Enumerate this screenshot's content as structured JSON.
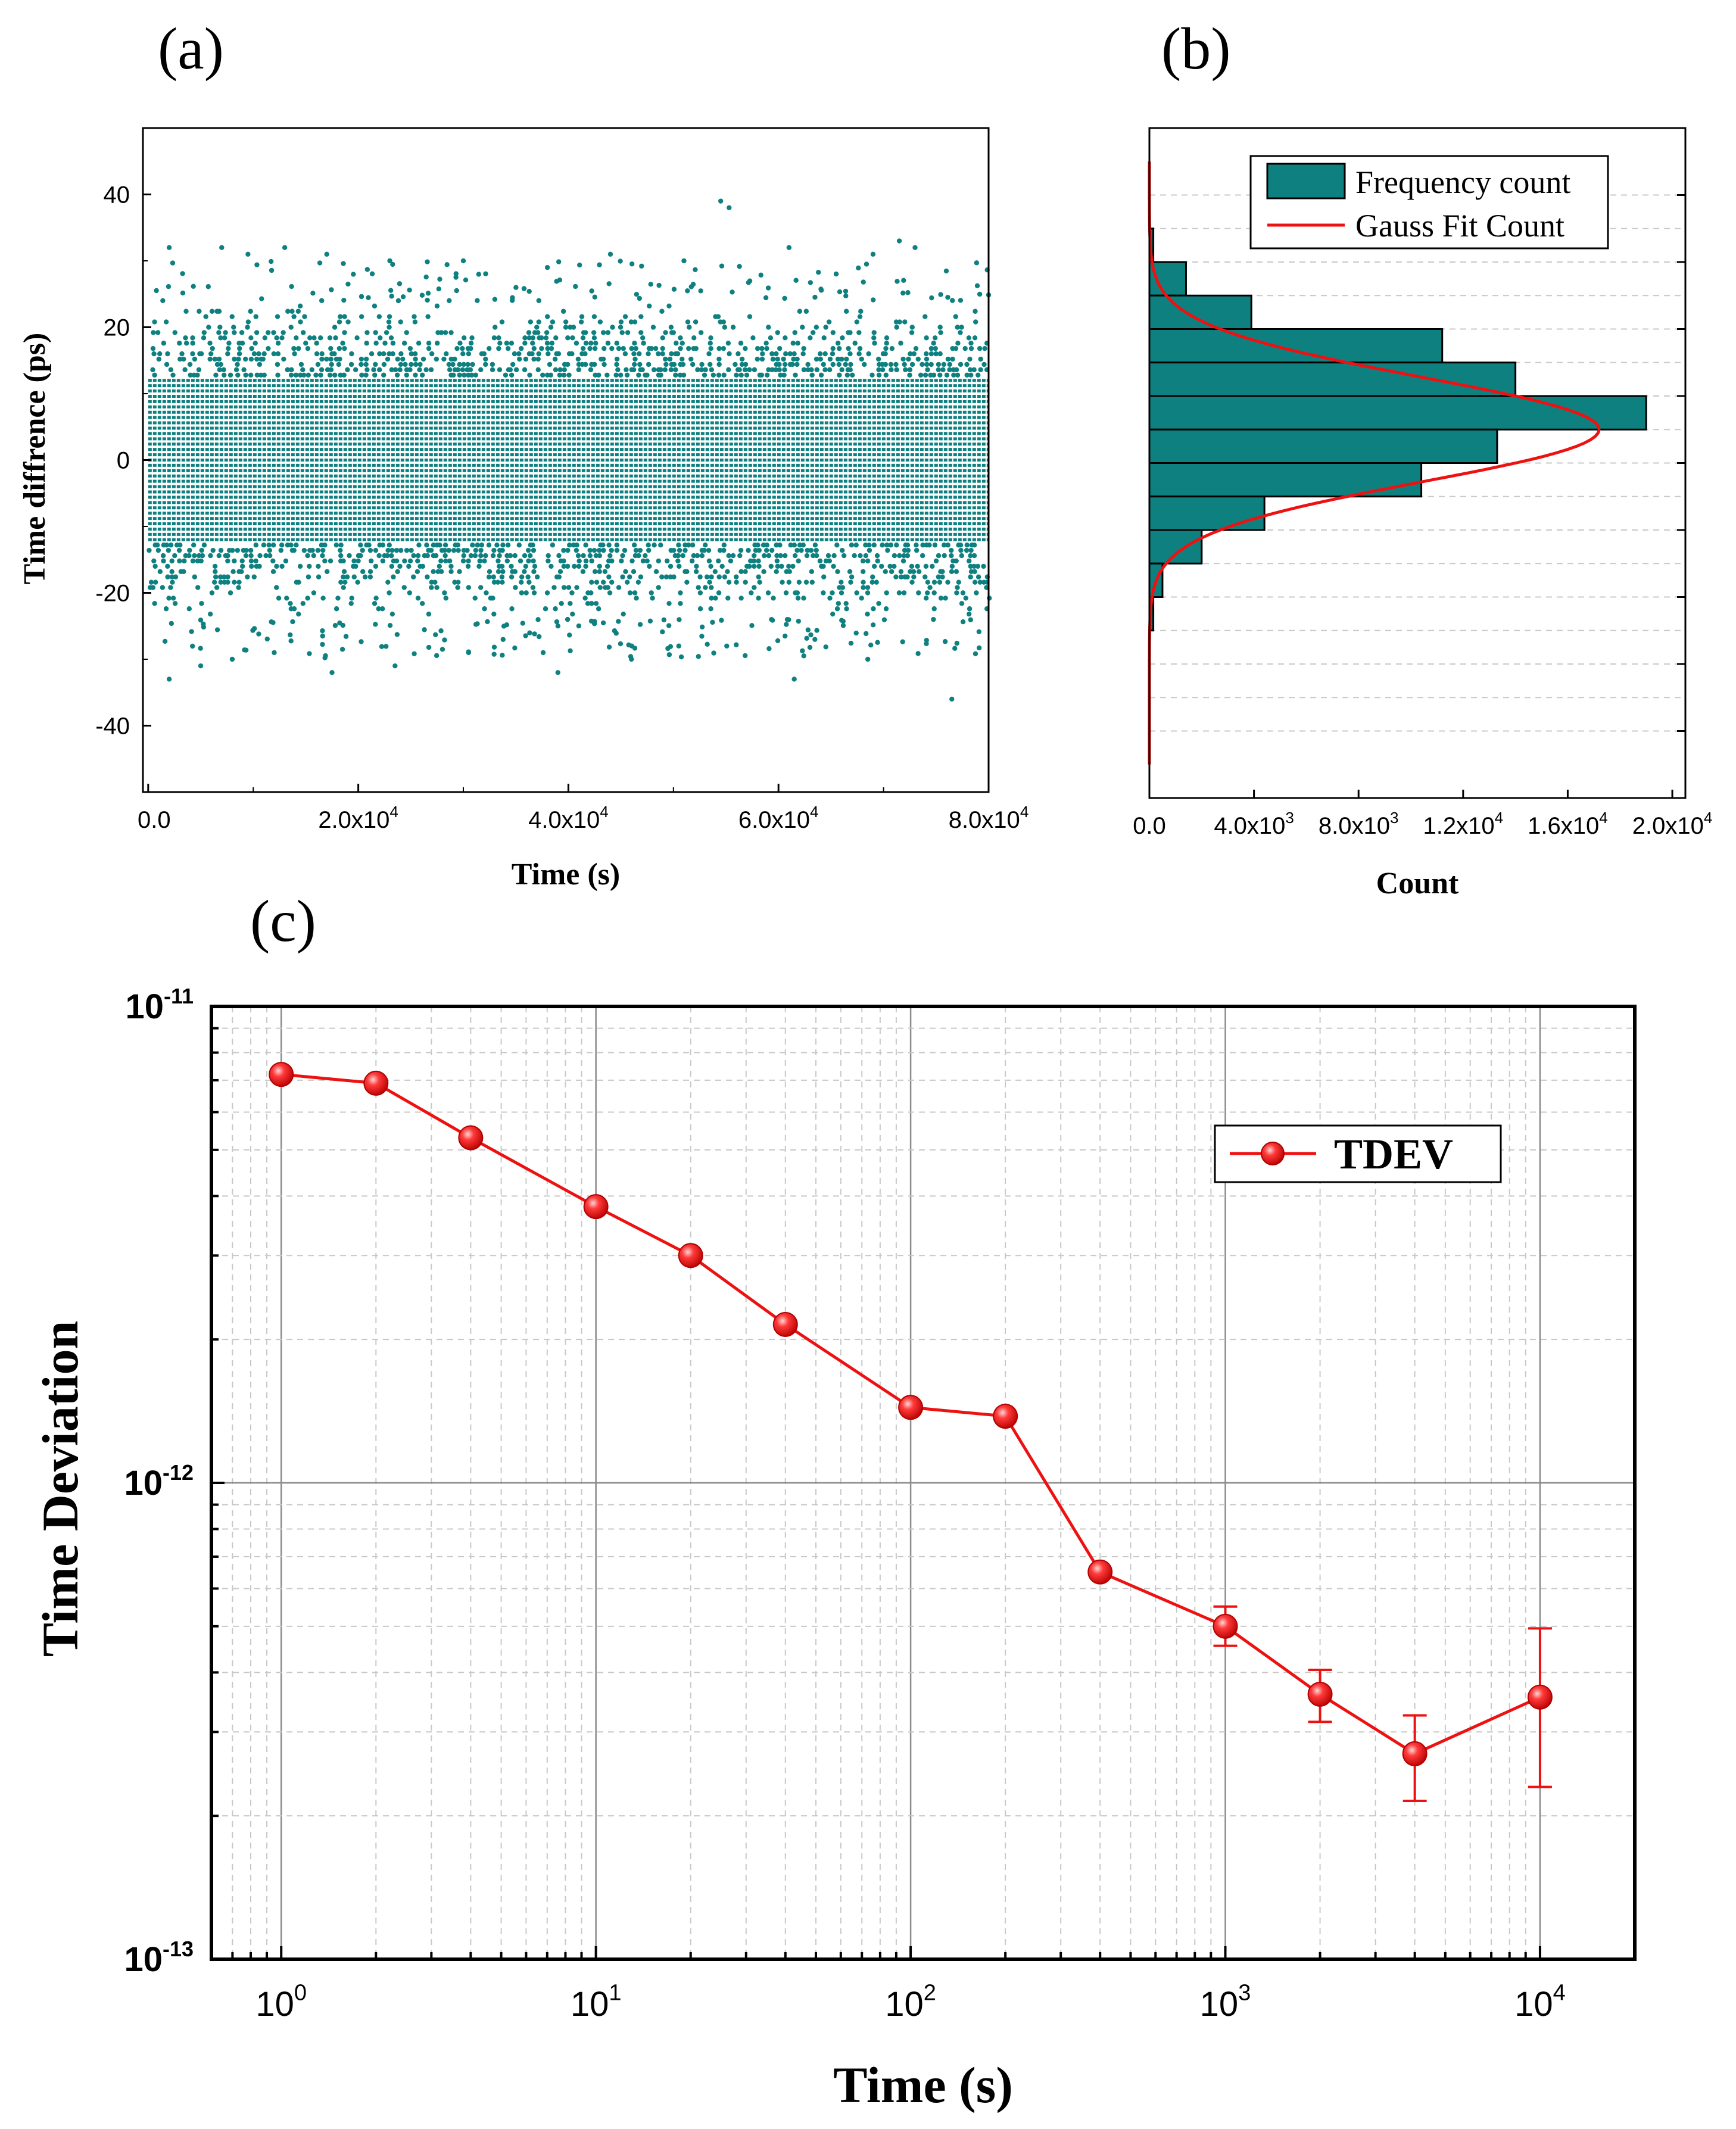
{
  "panel_labels": {
    "a": "(a)",
    "b": "(b)",
    "c": "(c)"
  },
  "colors": {
    "teal": "#0f8080",
    "red": "#ee1111",
    "grid": "#c8c8c8",
    "major_grid": "#8a8a8a"
  },
  "chart_data": [
    {
      "id": "a",
      "type": "scatter",
      "title": "",
      "xlabel": "Time (s)",
      "ylabel": "Time diffrence  (ps)",
      "xlim": [
        -500,
        80000
      ],
      "ylim": [
        -50,
        50
      ],
      "xticks": [
        0,
        20000,
        40000,
        60000,
        80000
      ],
      "xtick_labels": [
        {
          "base": "0.0",
          "exp": ""
        },
        {
          "base": "2.0x10",
          "exp": "4"
        },
        {
          "base": "4.0x10",
          "exp": "4"
        },
        {
          "base": "6.0x10",
          "exp": "4"
        },
        {
          "base": "8.0x10",
          "exp": "4"
        }
      ],
      "yticks": [
        -40,
        -20,
        0,
        20,
        40
      ],
      "ytick_labels": [
        "-40",
        "-20",
        "0",
        "20",
        "40"
      ],
      "quantization_ps": 0.8,
      "dense_band": [
        -12,
        12
      ],
      "outliers": [
        {
          "x": 54500,
          "y": 39
        },
        {
          "x": 55300,
          "y": 38
        },
        {
          "x": 2000,
          "y": 32
        },
        {
          "x": 7000,
          "y": 32
        },
        {
          "x": 9500,
          "y": 31
        },
        {
          "x": 13000,
          "y": 32
        },
        {
          "x": 17000,
          "y": 31
        },
        {
          "x": 23000,
          "y": 30
        },
        {
          "x": 30000,
          "y": 30
        },
        {
          "x": 38000,
          "y": 29
        },
        {
          "x": 44000,
          "y": 31
        },
        {
          "x": 51000,
          "y": 30
        },
        {
          "x": 61000,
          "y": 32
        },
        {
          "x": 69000,
          "y": 31
        },
        {
          "x": 71500,
          "y": 33
        },
        {
          "x": 73000,
          "y": 32
        },
        {
          "x": 2000,
          "y": -33
        },
        {
          "x": 5000,
          "y": -31
        },
        {
          "x": 17500,
          "y": -32
        },
        {
          "x": 23500,
          "y": -31
        },
        {
          "x": 39000,
          "y": -32
        },
        {
          "x": 46000,
          "y": -30
        },
        {
          "x": 61500,
          "y": -33
        },
        {
          "x": 76500,
          "y": -36
        },
        {
          "x": 68500,
          "y": -30
        },
        {
          "x": 30500,
          "y": -29
        },
        {
          "x": 8000,
          "y": -30
        },
        {
          "x": 12000,
          "y": -29
        }
      ]
    },
    {
      "id": "b",
      "type": "bar",
      "orientation": "horizontal",
      "title": "",
      "xlabel": "Count",
      "ylabel": "",
      "xlim": [
        0,
        20500
      ],
      "ylim": [
        -50,
        50
      ],
      "xticks": [
        0,
        4000,
        8000,
        12000,
        16000,
        20000
      ],
      "xtick_labels": [
        {
          "base": "0.0",
          "exp": ""
        },
        {
          "base": "4.0x10",
          "exp": "3"
        },
        {
          "base": "8.0x10",
          "exp": "3"
        },
        {
          "base": "1.2x10",
          "exp": "4"
        },
        {
          "base": "1.6x10",
          "exp": "4"
        },
        {
          "base": "2.0x10",
          "exp": "4"
        }
      ],
      "bin_width": 5,
      "bins": [
        {
          "center": 32.5,
          "count": 150
        },
        {
          "center": 27.5,
          "count": 1400
        },
        {
          "center": 22.5,
          "count": 3900
        },
        {
          "center": 17.5,
          "count": 11200
        },
        {
          "center": 12.5,
          "count": 14000
        },
        {
          "center": 7.5,
          "count": 19000
        },
        {
          "center": 2.5,
          "count": 13300
        },
        {
          "center": -2.5,
          "count": 10400
        },
        {
          "center": -7.5,
          "count": 4400
        },
        {
          "center": -12.5,
          "count": 2000
        },
        {
          "center": -17.5,
          "count": 500
        },
        {
          "center": -22.5,
          "count": 150
        }
      ],
      "gauss_fit": {
        "amplitude": 17200,
        "center": 5,
        "sigma": 7.8
      },
      "legend": [
        "Frequency count",
        "Gauss Fit Count"
      ],
      "legend_position": "top-right"
    },
    {
      "id": "c",
      "type": "line",
      "title": "",
      "xlabel": "Time (s)",
      "ylabel": "Time Deviation",
      "xscale": "log",
      "yscale": "log",
      "xlim": [
        0.6,
        20000
      ],
      "ylim": [
        1e-13,
        1e-11
      ],
      "xtick_labels": [
        {
          "base": "10",
          "exp": "0"
        },
        {
          "base": "10",
          "exp": "1"
        },
        {
          "base": "10",
          "exp": "2"
        },
        {
          "base": "10",
          "exp": "3"
        },
        {
          "base": "10",
          "exp": "4"
        }
      ],
      "ytick_labels": [
        {
          "base": "10",
          "exp": "-11"
        },
        {
          "base": "10",
          "exp": "-12"
        },
        {
          "base": "10",
          "exp": "-13"
        }
      ],
      "grid": true,
      "legend_position": "top-right",
      "series": [
        {
          "name": "TDEV",
          "x": [
            1,
            2,
            4,
            10,
            20,
            40,
            100,
            200,
            400,
            1000,
            2000,
            4000,
            10000
          ],
          "y": [
            7.2e-12,
            6.9e-12,
            5.3e-12,
            3.8e-12,
            3e-12,
            2.15e-12,
            1.44e-12,
            1.38e-12,
            6.5e-13,
            5e-13,
            3.6e-13,
            2.7e-13,
            3.55e-13
          ],
          "err_low": [
            0,
            0,
            0,
            0,
            0,
            0,
            0,
            0,
            0,
            4.55e-13,
            3.15e-13,
            2.15e-13,
            2.3e-13
          ],
          "err_high": [
            0,
            0,
            0,
            0,
            0,
            0,
            0,
            0,
            0,
            5.5e-13,
            4.05e-13,
            3.25e-13,
            4.95e-13
          ]
        }
      ]
    }
  ]
}
